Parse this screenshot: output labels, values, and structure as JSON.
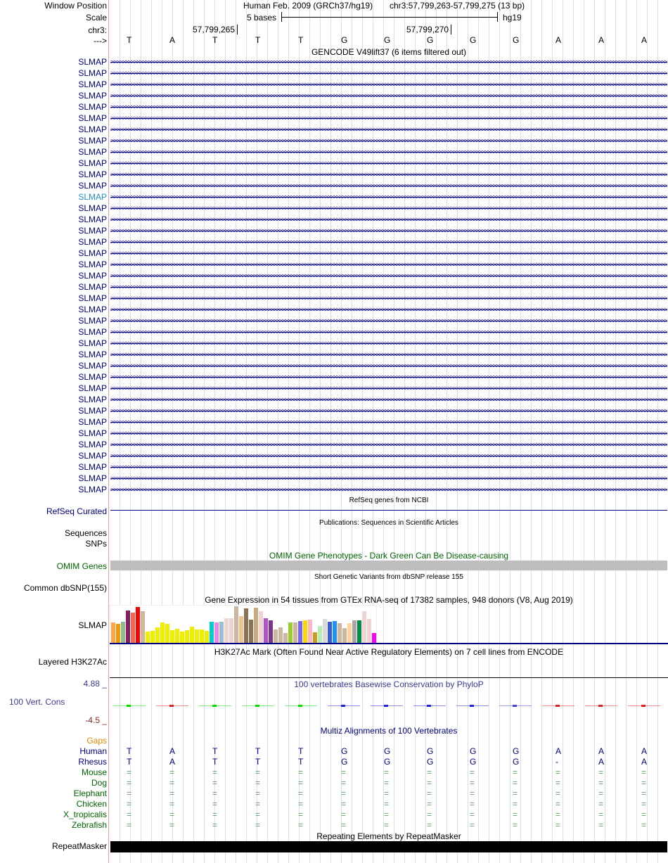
{
  "header": {
    "window_position_label": "Window Position",
    "assembly": "Human Feb. 2009 (GRCh37/hg19)",
    "position": "chr3:57,799,263-57,799,275 (13 bp)",
    "scale_label": "Scale",
    "scale_value": "5 bases",
    "db": "hg19",
    "chr_label": "chr3:",
    "coord1": "57,799,265",
    "coord2": "57,799,270",
    "strand_label": "--->"
  },
  "bases": [
    "T",
    "A",
    "T",
    "T",
    "T",
    "G",
    "G",
    "G",
    "G",
    "G",
    "A",
    "A",
    "A"
  ],
  "gencode": {
    "title": "GENCODE V49lift37 (6 items filtered out)",
    "gene": "SLMAP",
    "row_count": 39,
    "highlighted_index": 12,
    "highlight_color": "#1e90c8"
  },
  "refseq": {
    "title": "RefSeq genes from NCBI",
    "label": "RefSeq Curated"
  },
  "publications": {
    "title": "Publications: Sequences in Scientific Articles",
    "label1": "Sequences",
    "label2": "SNPs"
  },
  "omim": {
    "title": "OMIM Gene Phenotypes - Dark Green Can Be Disease-causing",
    "label": "OMIM Genes"
  },
  "dbsnp": {
    "title": "Short Genetic Variants from dbSNP release 155",
    "label": "Common dbSNP(155)"
  },
  "gtex": {
    "title": "Gene Expression in 54 tissues from GTEx RNA-seq of 17382 samples, 948 donors (V8, Aug 2019)",
    "label": "SLMAP",
    "values": [
      92,
      86,
      94,
      142,
      133,
      158,
      139,
      52,
      55,
      70,
      92,
      86,
      58,
      64,
      52,
      58,
      73,
      61,
      61,
      55,
      94,
      91,
      94,
      109,
      109,
      160,
      118,
      151,
      103,
      154,
      139,
      109,
      100,
      61,
      70,
      46,
      91,
      91,
      97,
      100,
      103,
      49,
      76,
      106,
      94,
      97,
      88,
      67,
      88,
      100,
      100,
      139,
      106,
      46
    ],
    "colors": [
      "#ffa54f",
      "#ee9a00",
      "#8fbc8f",
      "#8b1c62",
      "#ee6a50",
      "#ff0000",
      "#cdb79e",
      "#eeee00",
      "#eeee00",
      "#eeee00",
      "#eeee00",
      "#eeee00",
      "#eeee00",
      "#eeee00",
      "#eeee00",
      "#eeee00",
      "#eeee00",
      "#eeee00",
      "#eeee00",
      "#eeee00",
      "#00cdcd",
      "#ee82ee",
      "#9ac0cd",
      "#eed5d2",
      "#eed5d2",
      "#cdb79e",
      "#eec591",
      "#8b7355",
      "#8b7355",
      "#cdaa7d",
      "#eed5d2",
      "#b452cd",
      "#7a378b",
      "#cdb79e",
      "#cdb79e",
      "#cdb79e",
      "#9acd32",
      "#cdb79e",
      "#7b68ee",
      "#ffd700",
      "#ffb6c1",
      "#cd9b1d",
      "#b4eeb4",
      "#d9d9d9",
      "#3a5fcd",
      "#1e90ff",
      "#cdb79e",
      "#cdb79e",
      "#ffd39b",
      "#a6a6a6",
      "#008b45",
      "#eed5d2",
      "#eed5d2",
      "#ff00ff"
    ]
  },
  "h3k27ac": {
    "title": "H3K27Ac Mark (Often Found Near Active Regulatory Elements) on 7 cell lines from ENCODE",
    "label": "Layered H3K27Ac"
  },
  "phylop": {
    "title": "100 vertebrates Basewise Conservation by PhyloP",
    "label": "100 Vert. Cons",
    "max": "4.88 _",
    "min": "-4.5 _",
    "colors": [
      "#00dd00",
      "#dd2222",
      "#00dd00",
      "#00dd00",
      "#00dd00",
      "#2222dd",
      "#2222dd",
      "#2222dd",
      "#2222dd",
      "#4444dd",
      "#dd2222",
      "#dd2222",
      "#dd2222"
    ]
  },
  "multiz": {
    "title": "Multiz Alignments of 100 Vertebrates",
    "gaps_label": "Gaps",
    "species": [
      {
        "name": "Human",
        "color": "#000080",
        "seq": [
          "T",
          "A",
          "T",
          "T",
          "T",
          "G",
          "G",
          "G",
          "G",
          "G",
          "A",
          "A",
          "A"
        ]
      },
      {
        "name": "Rhesus",
        "color": "#000080",
        "seq": [
          "T",
          "A",
          "T",
          "T",
          "T",
          "G",
          "G",
          "G",
          "G",
          "G",
          "-",
          "A",
          "A"
        ]
      },
      {
        "name": "Mouse",
        "color": "#006400",
        "seq": [
          "=",
          "=",
          "=",
          "=",
          "=",
          "=",
          "=",
          "=",
          "=",
          "=",
          "=",
          "=",
          "="
        ]
      },
      {
        "name": "Dog",
        "color": "#006400",
        "seq": [
          "=",
          "=",
          "=",
          "=",
          "=",
          "=",
          "=",
          "=",
          "=",
          "=",
          "=",
          "=",
          "="
        ]
      },
      {
        "name": "Elephant",
        "color": "#006400",
        "seq": [
          "=",
          "=",
          "=",
          "=",
          "=",
          "=",
          "=",
          "=",
          "=",
          "=",
          "=",
          "=",
          "="
        ]
      },
      {
        "name": "Chicken",
        "color": "#006400",
        "seq": [
          "=",
          "=",
          "=",
          "=",
          "=",
          "=",
          "=",
          "=",
          "=",
          "=",
          "=",
          "=",
          "="
        ]
      },
      {
        "name": "X_tropicalis",
        "color": "#006400",
        "seq": [
          "=",
          "=",
          "=",
          "=",
          "=",
          "=",
          "=",
          "=",
          "=",
          "=",
          "=",
          "=",
          "="
        ]
      },
      {
        "name": "Zebrafish",
        "color": "#006400",
        "seq": [
          "=",
          "=",
          "=",
          "=",
          "=",
          "=",
          "=",
          "=",
          "=",
          "=",
          "=",
          "=",
          "="
        ]
      }
    ]
  },
  "repeatmasker": {
    "title": "Repeating Elements by RepeatMasker",
    "label": "RepeatMasker"
  }
}
